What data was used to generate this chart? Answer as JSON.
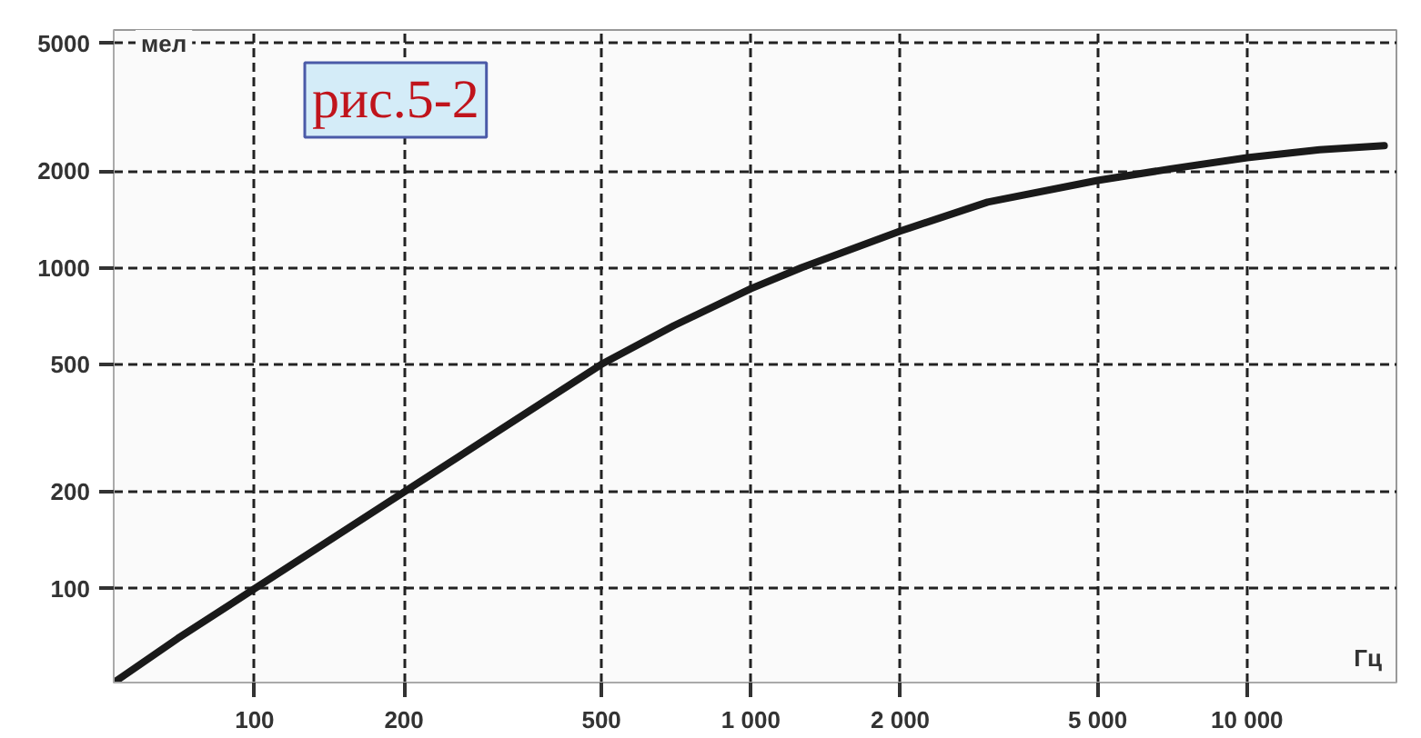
{
  "chart_data": {
    "type": "line",
    "xlabel": "Гц",
    "ylabel": "мел",
    "annotations": [
      "рис.5-2"
    ],
    "x": [
      52,
      70,
      100,
      140,
      200,
      300,
      500,
      700,
      1000,
      1265,
      2000,
      3000,
      5000,
      7000,
      10000,
      14000,
      18900
    ],
    "series": [
      {
        "color": "#1a1a1a",
        "values": [
          51,
          70,
          100,
          140,
          200,
          300,
          500,
          660,
          860,
          1000,
          1300,
          1600,
          1870,
          2030,
          2200,
          2330,
          2400
        ]
      }
    ],
    "log": "xy",
    "xlim": [
      52,
      20000
    ],
    "ylim": [
      51,
      5500
    ],
    "xticks": [
      100,
      200,
      500,
      {
        "value": 1000,
        "label": "1 000"
      },
      {
        "value": 2000,
        "label": "2 000"
      },
      {
        "value": 5000,
        "label": "5 000"
      },
      {
        "value": 10000,
        "label": "10 000"
      }
    ],
    "yticks": [
      100,
      200,
      500,
      1000,
      2000,
      5000
    ],
    "grid": true,
    "line_style": "solid",
    "marker": "none"
  }
}
